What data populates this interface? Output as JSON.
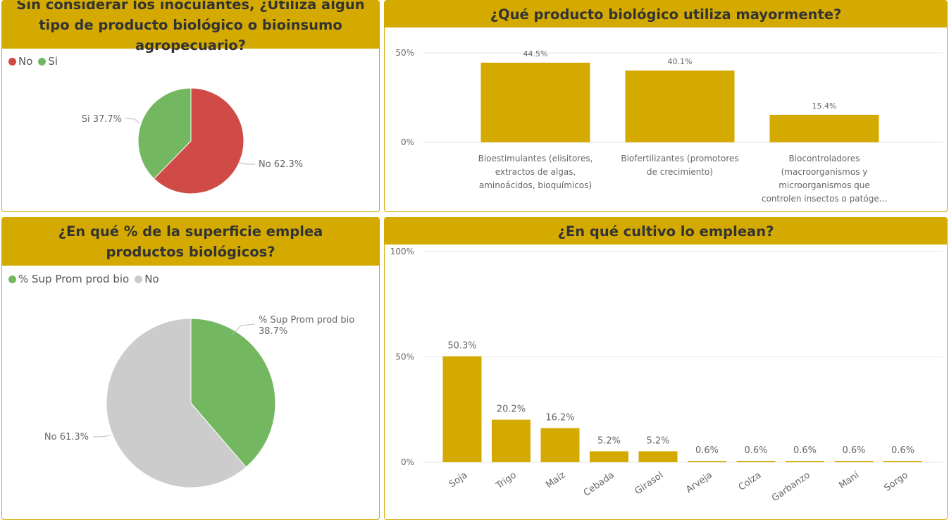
{
  "colors": {
    "accent": "#D4AA00",
    "no": "#D04B48",
    "si": "#73B761",
    "gray": "#CCCCCC"
  },
  "chart_data": [
    {
      "type": "pie",
      "title": "Sin considerar los inoculantes, ¿Utiliza algún tipo de producto biológico o bioinsumo agropecuario?",
      "legend": [
        "No",
        "Si"
      ],
      "legend_position": "top-left",
      "slices": [
        {
          "label": "No",
          "value": 62.3,
          "data_label": "No 62.3%",
          "color": "#D04B48"
        },
        {
          "label": "Si",
          "value": 37.7,
          "data_label": "Si 37.7%",
          "color": "#73B761"
        }
      ]
    },
    {
      "type": "bar",
      "title": "¿Qué producto biológico utiliza mayormente?",
      "categories": [
        [
          "Bioestimulantes (elisitores,",
          "extractos de algas,",
          "aminoácidos, bioquímicos)"
        ],
        [
          "Biofertilizantes (promotores",
          "de crecimiento)"
        ],
        [
          "Biocontroladores",
          "(macroorganismos y",
          "microorganismos que",
          "controlen insectos o patóge..."
        ]
      ],
      "values": [
        44.5,
        40.1,
        15.4
      ],
      "data_labels": [
        "44.5%",
        "40.1%",
        "15.4%"
      ],
      "yticks": [
        "0%",
        "50%"
      ],
      "ylim": [
        0,
        50
      ],
      "grid": true
    },
    {
      "type": "pie",
      "title": "¿En qué % de la superficie emplea productos biológicos?",
      "legend": [
        "% Sup Prom prod bio",
        "No"
      ],
      "legend_position": "top-left",
      "slices": [
        {
          "label": "% Sup Prom prod bio",
          "value": 38.7,
          "data_label": [
            "% Sup Prom prod bio",
            "38.7%"
          ],
          "color": "#73B761"
        },
        {
          "label": "No",
          "value": 61.3,
          "data_label": "No 61.3%",
          "color": "#CCCCCC"
        }
      ]
    },
    {
      "type": "bar",
      "title": "¿En qué cultivo lo emplean?",
      "categories": [
        "Soja",
        "Trigo",
        "Maíz",
        "Cebada",
        "Girasol",
        "Arveja",
        "Colza",
        "Garbanzo",
        "Maní",
        "Sorgo"
      ],
      "values": [
        50.3,
        20.2,
        16.2,
        5.2,
        5.2,
        0.6,
        0.6,
        0.6,
        0.6,
        0.6
      ],
      "data_labels": [
        "50.3%",
        "20.2%",
        "16.2%",
        "5.2%",
        "5.2%",
        "0.6%",
        "0.6%",
        "0.6%",
        "0.6%",
        "0.6%"
      ],
      "yticks": [
        "0%",
        "50%",
        "100%"
      ],
      "ylim": [
        0,
        100
      ],
      "grid": true
    }
  ]
}
